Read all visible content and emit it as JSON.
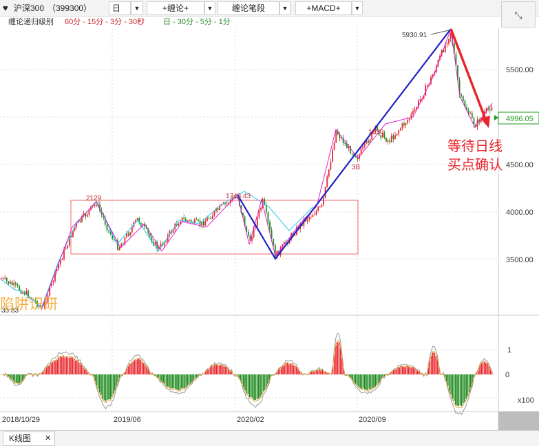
{
  "toolbar": {
    "stock": "沪深300",
    "code": "（399300）",
    "period": "日",
    "chan_btn": "+缠论+",
    "stroke_btn": "缠论笔段",
    "macd_btn": "+MACD+"
  },
  "levels_bar": {
    "label": "缠论递归级别",
    "red_levels": "60分 - 15分 - 3分 - 30秒",
    "green_levels": "日 - 30分 - 5分 - 1分"
  },
  "price_axis": [
    "5500.00",
    "5000.00",
    "4500.00",
    "4000.00",
    "3500.00"
  ],
  "current_price": "4996.05",
  "macd_axis": [
    "1",
    "0",
    "x100"
  ],
  "date_axis": [
    "2018/10/29",
    "2019/06",
    "2020/02",
    "2020/09"
  ],
  "annotations": {
    "peak": "5930.91",
    "a2129": "2129",
    "a1743": "1743.43",
    "a1630": "1630",
    "a3b": "3B",
    "low_partial": "35.83",
    "left_overlay": "陷阱识研",
    "forecast_line1": "等待日线",
    "forecast_line2": "买点确认"
  },
  "colors": {
    "up": "#e8262c",
    "down": "#1f8a1f",
    "box": "#f08080",
    "blue_stroke": "#1f1fc8",
    "cyan_stroke": "#33c4f0",
    "magenta_stroke": "#e020d0",
    "arrow": "#e8262c",
    "price_tag": "#1e9a1e"
  },
  "icons": {
    "heart": "heart-icon",
    "expand": "expand-icon",
    "close": "close-icon",
    "dropdown": "chevron-down-icon"
  },
  "chart_data": {
    "type": "candlestick",
    "title": "沪深300（399300）",
    "ylim": [
      3100,
      5950
    ],
    "key_points": [
      {
        "label": "start",
        "x": "2018/10/29",
        "y": 3200
      },
      {
        "label": "2129",
        "x": "2019/04",
        "y": 4120
      },
      {
        "label": "low",
        "x": "2019/06",
        "y": 3580
      },
      {
        "label": "1743.43",
        "x": "2020/01",
        "y": 4220
      },
      {
        "label": "low",
        "x": "2020/03",
        "y": 3503
      },
      {
        "label": "high",
        "x": "2020/07",
        "y": 4880
      },
      {
        "label": "5930.91",
        "x": "2021/02",
        "y": 5930.91
      },
      {
        "label": "current",
        "x": "2021/03",
        "y": 4996.05
      }
    ],
    "macd_range": [
      -1.5,
      1.8
    ]
  },
  "bottom_tab": {
    "label": "K线图",
    "close": "✕"
  }
}
